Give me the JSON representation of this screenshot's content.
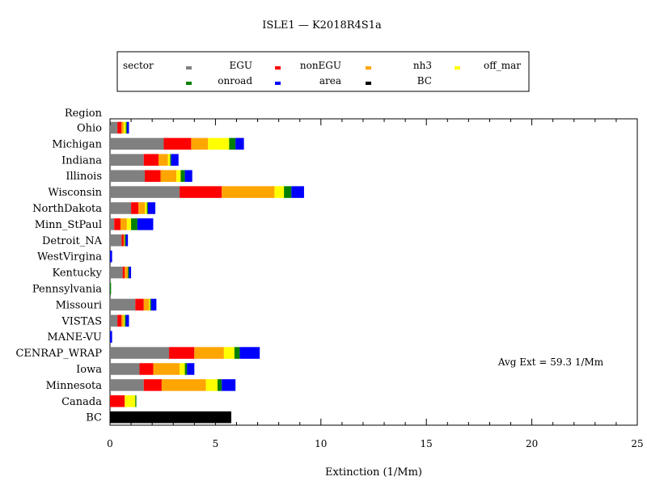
{
  "chart_data": {
    "type": "bar",
    "orientation": "horizontal",
    "stacked": true,
    "title": "ISLE1 — K2018R4S1a",
    "xlabel": "Extinction (1/Mm)",
    "ylabel": "Region",
    "xlim": [
      0,
      25
    ],
    "x_ticks": [
      "0",
      "5",
      "10",
      "15",
      "20",
      "25"
    ],
    "annotation": "Avg Ext =  59.3 1/Mm",
    "legend": {
      "title": "sector",
      "placement": "top",
      "entries": [
        "EGU",
        "nonEGU",
        "nh3",
        "off_mar",
        "onroad",
        "area",
        "BC"
      ]
    },
    "categories": [
      "Ohio",
      "Michigan",
      "Indiana",
      "Illinois",
      "Wisconsin",
      "NorthDakota",
      "Minn_StPaul",
      "Detroit_NA",
      "WestVirgina",
      "Kentucky",
      "Pennsylvania",
      "Missouri",
      "VISTAS",
      "MANE-VU",
      "CENRAP_WRAP",
      "Iowa",
      "Minnesota",
      "Canada",
      "BC"
    ],
    "series": [
      {
        "name": "EGU",
        "color": "#808080",
        "values": [
          0.35,
          2.55,
          1.6,
          1.65,
          3.3,
          1.0,
          0.2,
          0.55,
          0.0,
          0.6,
          0.0,
          1.2,
          0.35,
          0.0,
          2.8,
          1.4,
          1.6,
          0.0,
          0.0
        ]
      },
      {
        "name": "nonEGU",
        "color": "#ff0000",
        "values": [
          0.2,
          1.3,
          0.7,
          0.75,
          2.0,
          0.35,
          0.3,
          0.1,
          0.0,
          0.1,
          0.0,
          0.4,
          0.2,
          0.0,
          1.2,
          0.65,
          0.85,
          0.7,
          0.0
        ]
      },
      {
        "name": "nh3",
        "color": "#ffa500",
        "values": [
          0.1,
          0.8,
          0.45,
          0.75,
          2.5,
          0.3,
          0.3,
          0.05,
          0.0,
          0.15,
          0.0,
          0.25,
          0.1,
          0.0,
          1.4,
          1.25,
          2.1,
          0.0,
          0.0
        ]
      },
      {
        "name": "off_mar",
        "color": "#ffff00",
        "values": [
          0.1,
          1.0,
          0.1,
          0.2,
          0.45,
          0.1,
          0.2,
          0.0,
          0.0,
          0.0,
          0.0,
          0.05,
          0.05,
          0.0,
          0.5,
          0.25,
          0.55,
          0.5,
          0.0
        ]
      },
      {
        "name": "onroad",
        "color": "#008000",
        "values": [
          0.05,
          0.3,
          0.05,
          0.2,
          0.35,
          0.05,
          0.3,
          0.05,
          0.0,
          0.05,
          0.05,
          0.05,
          0.05,
          0.0,
          0.25,
          0.1,
          0.2,
          0.05,
          0.0
        ]
      },
      {
        "name": "area",
        "color": "#0000ff",
        "values": [
          0.1,
          0.4,
          0.35,
          0.35,
          0.6,
          0.35,
          0.75,
          0.1,
          0.1,
          0.1,
          0.0,
          0.25,
          0.15,
          0.1,
          0.95,
          0.35,
          0.65,
          0.0,
          0.0
        ]
      },
      {
        "name": "BC",
        "color": "#000000",
        "values": [
          0.0,
          0.0,
          0.0,
          0.0,
          0.0,
          0.0,
          0.0,
          0.0,
          0.0,
          0.0,
          0.0,
          0.0,
          0.0,
          0.0,
          0.0,
          0.0,
          0.0,
          0.0,
          5.75
        ]
      }
    ]
  }
}
